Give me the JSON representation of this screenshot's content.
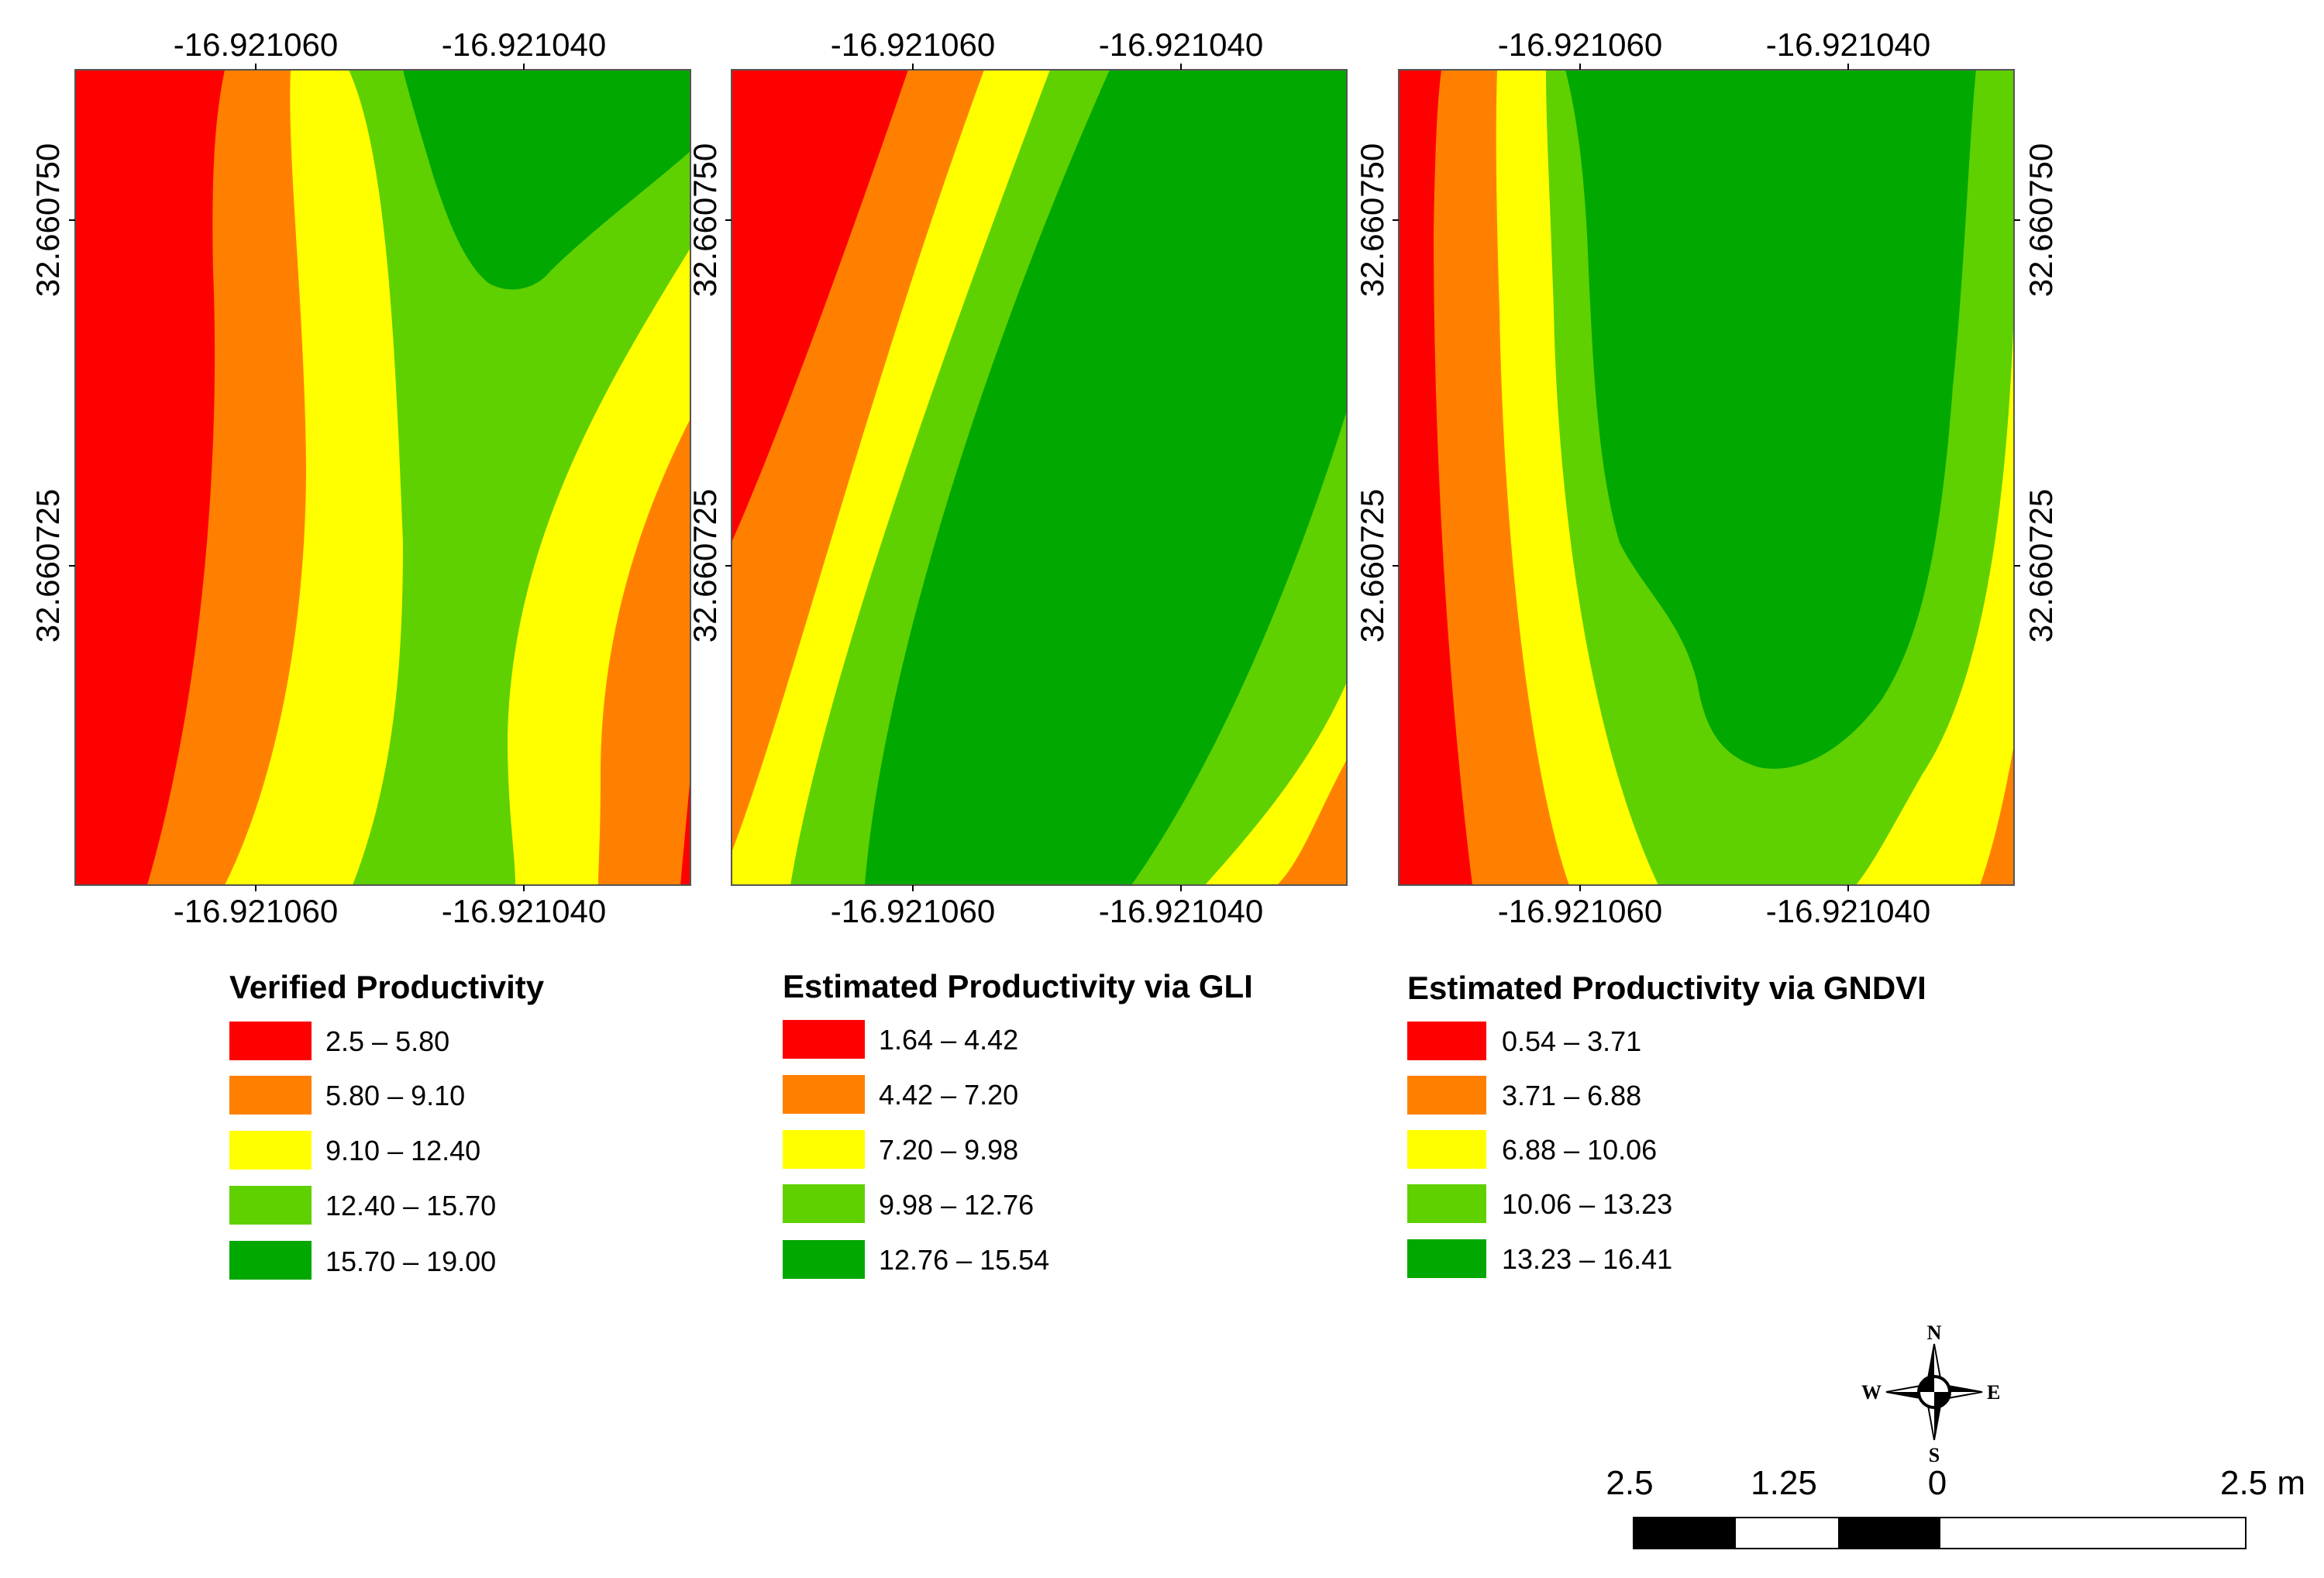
{
  "coordinates": {
    "lon_ticks": [
      "-16.921060",
      "-16.921040"
    ],
    "lat_ticks": [
      "32.660750",
      "32.660725"
    ]
  },
  "legends": [
    {
      "title": "Verified Productivity",
      "classes": [
        {
          "label": "2.5 – 5.80",
          "color": "#ff0000"
        },
        {
          "label": "5.80 – 9.10",
          "color": "#ff8000"
        },
        {
          "label": "9.10 – 12.40",
          "color": "#ffff00"
        },
        {
          "label": "12.40 – 15.70",
          "color": "#5fd000"
        },
        {
          "label": "15.70 – 19.00",
          "color": "#00a800"
        }
      ]
    },
    {
      "title": "Estimated Productivity via GLI",
      "classes": [
        {
          "label": "1.64 – 4.42",
          "color": "#ff0000"
        },
        {
          "label": "4.42 – 7.20",
          "color": "#ff8000"
        },
        {
          "label": "7.20 – 9.98",
          "color": "#ffff00"
        },
        {
          "label": "9.98 – 12.76",
          "color": "#5fd000"
        },
        {
          "label": "12.76 – 15.54",
          "color": "#00a800"
        }
      ]
    },
    {
      "title": "Estimated Productivity via GNDVI",
      "classes": [
        {
          "label": "0.54 – 3.71",
          "color": "#ff0000"
        },
        {
          "label": "3.71 – 6.88",
          "color": "#ff8000"
        },
        {
          "label": "6.88 – 10.06",
          "color": "#ffff00"
        },
        {
          "label": "10.06 – 13.23",
          "color": "#5fd000"
        },
        {
          "label": "13.23 – 16.41",
          "color": "#00a800"
        }
      ]
    }
  ],
  "compass": {
    "n": "N",
    "s": "S",
    "e": "E",
    "w": "W"
  },
  "scale_bar": {
    "labels": [
      "2.5",
      "1.25",
      "0",
      "2.5 m"
    ]
  }
}
